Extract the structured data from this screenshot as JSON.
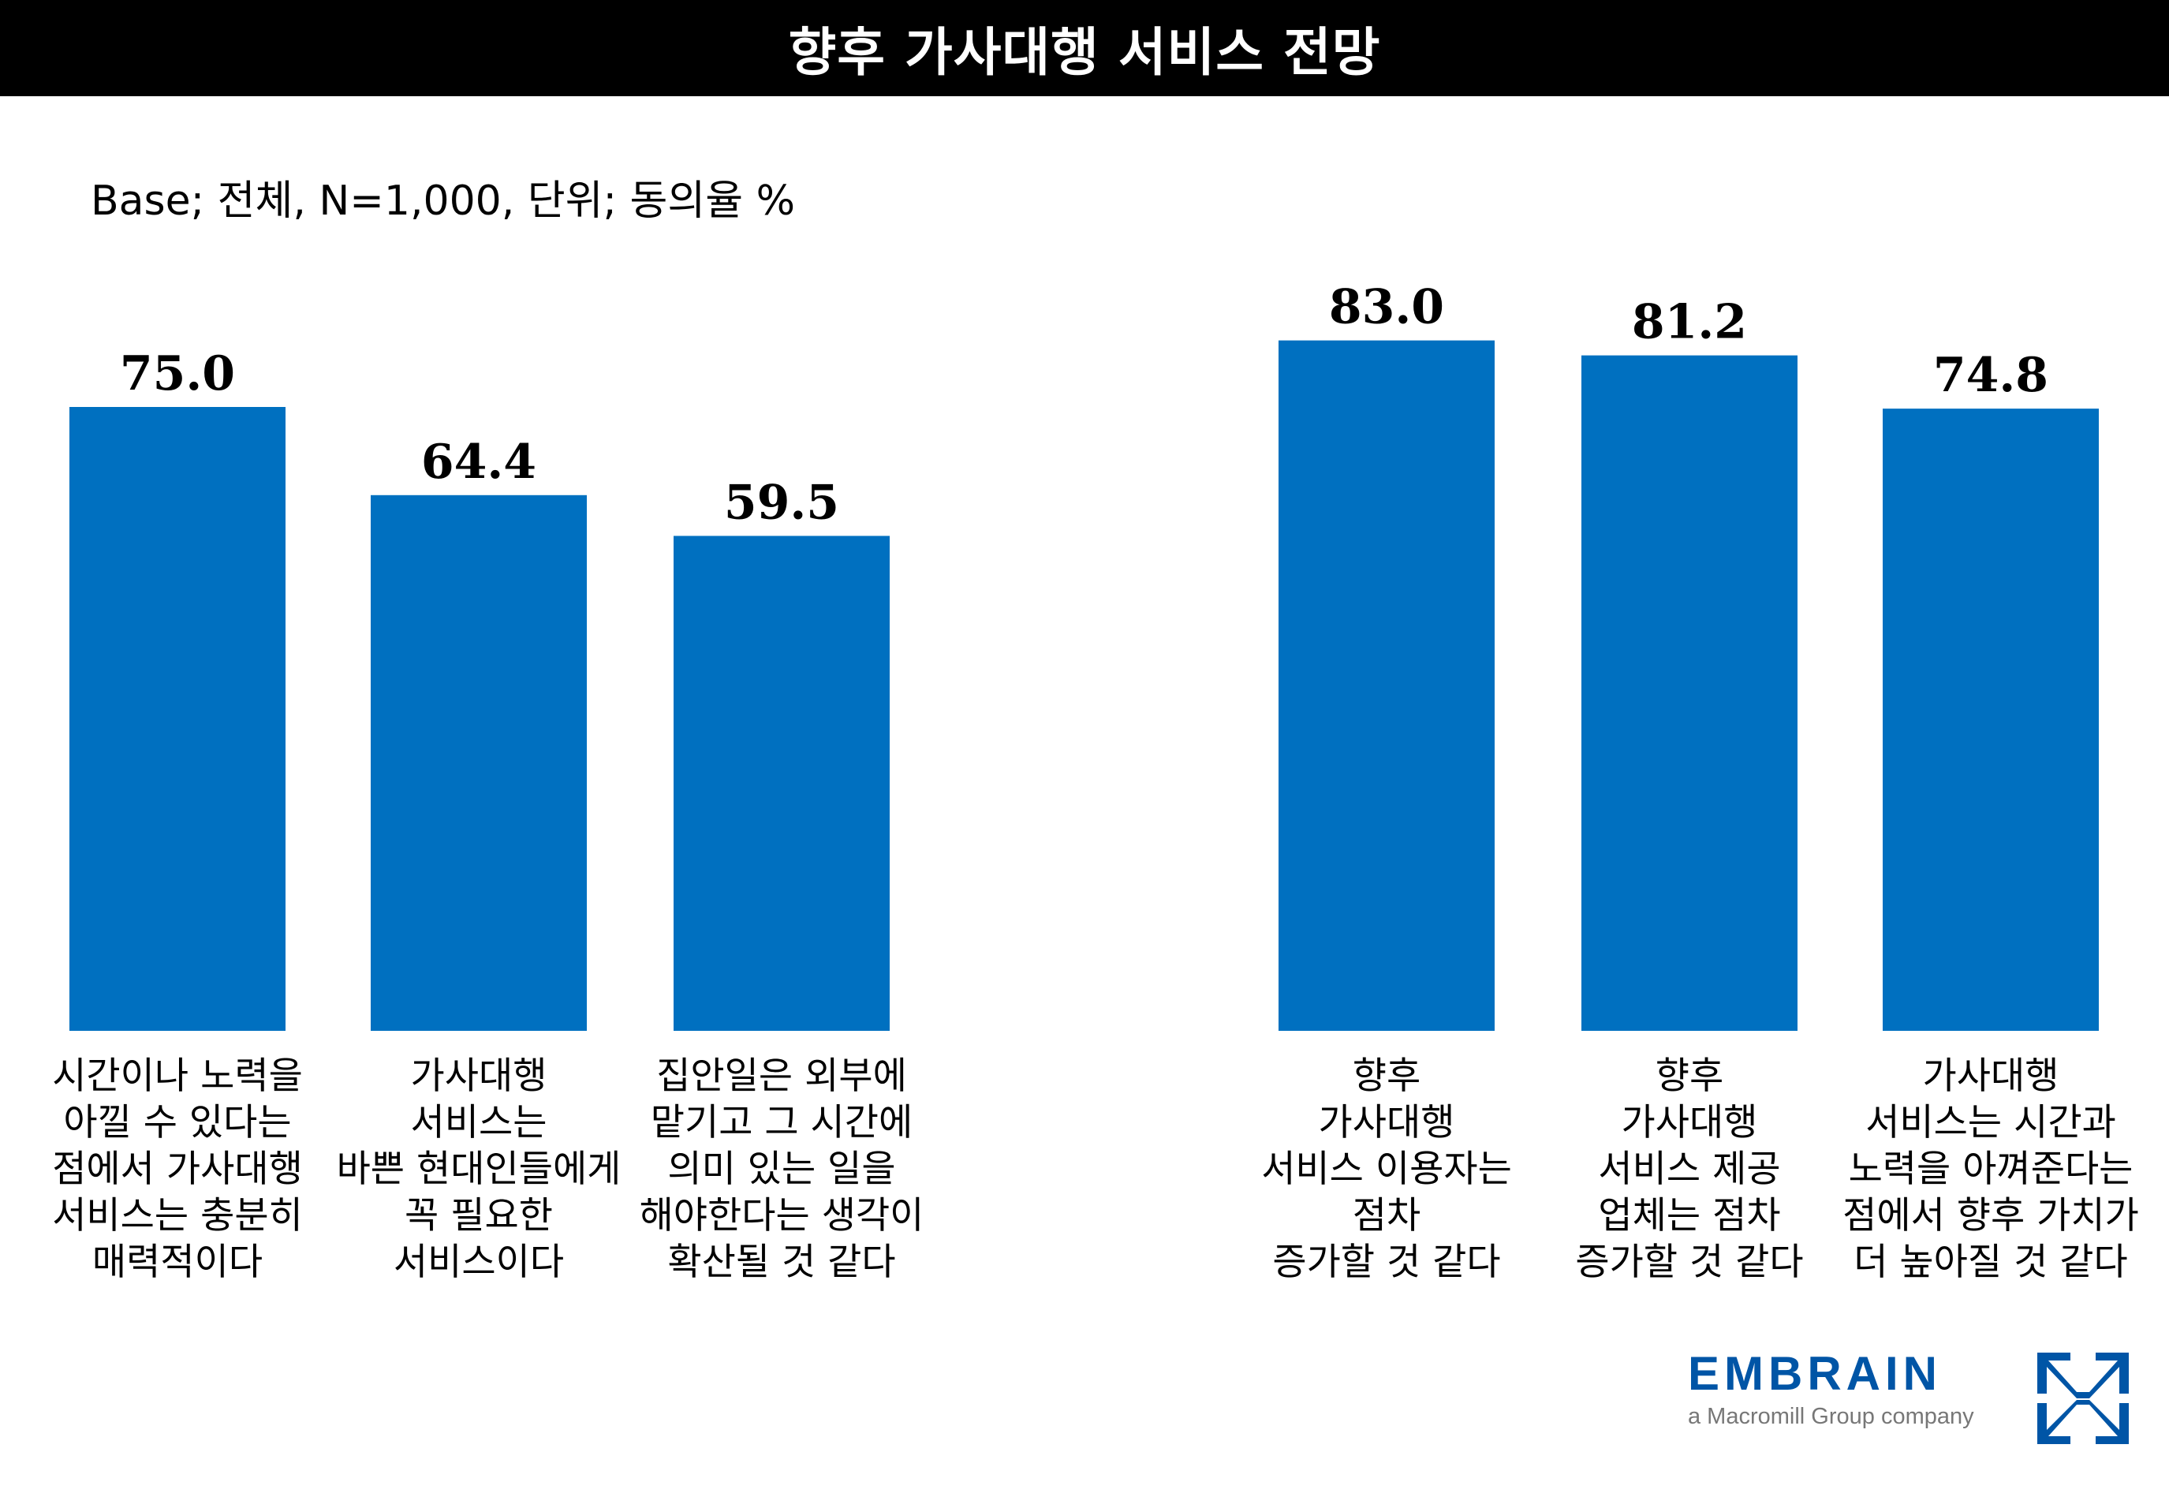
{
  "title": "향후 가사대행 서비스 전망",
  "base_note": "Base; 전체, N=1,000, 단위; 동의율 %",
  "colors": {
    "bar": "#0070c0",
    "brand": "#0055a6"
  },
  "logo": {
    "word": "EMBRAIN",
    "sub": "a Macromill Group company"
  },
  "chart_data": {
    "type": "bar",
    "title": "향후 가사대행 서비스 전망",
    "xlabel": "",
    "ylabel": "동의율 %",
    "ylim": [
      0,
      100
    ],
    "grid": false,
    "categories": [
      "시간이나 노력을\n아낄 수 있다는\n점에서 가사대행\n서비스는 충분히\n매력적이다",
      "가사대행\n서비스는\n바쁜 현대인들에게\n꼭 필요한\n서비스이다",
      "집안일은 외부에\n맡기고 그 시간에\n의미 있는 일을\n해야한다는 생각이\n확산될 것 같다",
      "향후\n가사대행\n서비스 이용자는\n점차\n증가할 것 같다",
      "향후\n가사대행\n서비스 제공\n업체는 점차\n증가할 것 같다",
      "가사대행\n서비스는 시간과\n노력을 아껴준다는\n점에서 향후 가치가\n더 높아질 것 같다"
    ],
    "values": [
      75.0,
      64.4,
      59.5,
      83.0,
      81.2,
      74.8
    ],
    "value_labels": [
      "75.0",
      "64.4",
      "59.5",
      "83.0",
      "81.2",
      "74.8"
    ]
  }
}
